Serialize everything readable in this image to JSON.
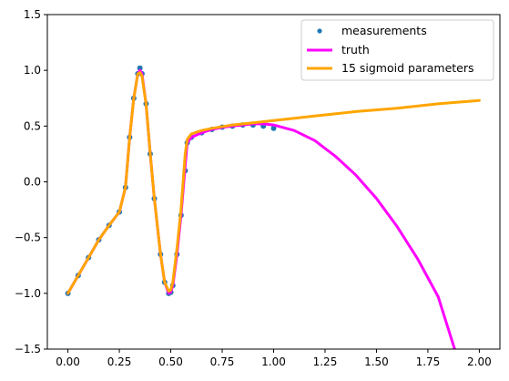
{
  "chart_data": {
    "type": "line",
    "title": "",
    "xlabel": "",
    "ylabel": "",
    "xlim": [
      -0.1,
      2.1
    ],
    "ylim": [
      -1.5,
      1.5
    ],
    "grid": false,
    "legend_position": "top-right",
    "x_ticks": [
      "0.00",
      "0.25",
      "0.50",
      "0.75",
      "1.00",
      "1.25",
      "1.50",
      "1.75",
      "2.00"
    ],
    "x_tick_values": [
      0.0,
      0.25,
      0.5,
      0.75,
      1.0,
      1.25,
      1.5,
      1.75,
      2.0
    ],
    "y_ticks": [
      "−1.5",
      "−1.0",
      "−0.5",
      "0.0",
      "0.5",
      "1.0",
      "1.5"
    ],
    "y_tick_values": [
      -1.5,
      -1.0,
      -0.5,
      0.0,
      0.5,
      1.0,
      1.5
    ],
    "series": [
      {
        "name": "measurements",
        "kind": "scatter",
        "color": "#1f77b4",
        "x": [
          0.0,
          0.05,
          0.1,
          0.15,
          0.2,
          0.25,
          0.28,
          0.3,
          0.32,
          0.34,
          0.35,
          0.36,
          0.38,
          0.4,
          0.42,
          0.45,
          0.47,
          0.49,
          0.5,
          0.51,
          0.53,
          0.55,
          0.57,
          0.58,
          0.6,
          0.65,
          0.7,
          0.75,
          0.8,
          0.85,
          0.9,
          0.95,
          1.0
        ],
        "y": [
          -1.0,
          -0.84,
          -0.68,
          -0.52,
          -0.39,
          -0.27,
          -0.05,
          0.4,
          0.75,
          0.97,
          1.02,
          0.97,
          0.7,
          0.25,
          -0.15,
          -0.65,
          -0.9,
          -1.0,
          -0.99,
          -0.93,
          -0.65,
          -0.3,
          0.1,
          0.35,
          0.4,
          0.44,
          0.47,
          0.49,
          0.5,
          0.51,
          0.51,
          0.5,
          0.48
        ]
      },
      {
        "name": "truth",
        "kind": "line",
        "color": "#ff00ff",
        "x": [
          0.0,
          0.05,
          0.1,
          0.15,
          0.2,
          0.25,
          0.28,
          0.3,
          0.32,
          0.34,
          0.35,
          0.36,
          0.38,
          0.4,
          0.42,
          0.45,
          0.47,
          0.49,
          0.5,
          0.51,
          0.53,
          0.55,
          0.57,
          0.58,
          0.6,
          0.65,
          0.7,
          0.75,
          0.8,
          0.85,
          0.9,
          0.95,
          1.0,
          1.1,
          1.2,
          1.3,
          1.4,
          1.5,
          1.6,
          1.7,
          1.8,
          1.88
        ],
        "y": [
          -1.0,
          -0.84,
          -0.68,
          -0.52,
          -0.39,
          -0.27,
          -0.05,
          0.4,
          0.75,
          0.97,
          1.0,
          0.97,
          0.7,
          0.25,
          -0.15,
          -0.65,
          -0.9,
          -1.0,
          -0.99,
          -0.93,
          -0.65,
          -0.3,
          0.15,
          0.35,
          0.4,
          0.44,
          0.47,
          0.49,
          0.5,
          0.51,
          0.52,
          0.52,
          0.51,
          0.46,
          0.37,
          0.23,
          0.06,
          -0.15,
          -0.4,
          -0.69,
          -1.03,
          -1.5
        ]
      },
      {
        "name": "15 sigmoid parameters",
        "kind": "line",
        "color": "#ffa500",
        "x": [
          0.0,
          0.05,
          0.1,
          0.15,
          0.2,
          0.25,
          0.28,
          0.3,
          0.32,
          0.34,
          0.35,
          0.36,
          0.38,
          0.4,
          0.42,
          0.45,
          0.47,
          0.49,
          0.5,
          0.51,
          0.53,
          0.55,
          0.57,
          0.58,
          0.6,
          0.65,
          0.7,
          0.8,
          0.9,
          1.0,
          1.2,
          1.4,
          1.6,
          1.8,
          2.0
        ],
        "y": [
          -1.0,
          -0.84,
          -0.68,
          -0.52,
          -0.39,
          -0.27,
          -0.05,
          0.4,
          0.75,
          0.97,
          0.98,
          0.95,
          0.7,
          0.25,
          -0.15,
          -0.65,
          -0.9,
          -0.98,
          -0.97,
          -0.9,
          -0.6,
          -0.25,
          0.25,
          0.38,
          0.43,
          0.46,
          0.48,
          0.51,
          0.53,
          0.55,
          0.59,
          0.63,
          0.66,
          0.7,
          0.73
        ]
      }
    ]
  }
}
